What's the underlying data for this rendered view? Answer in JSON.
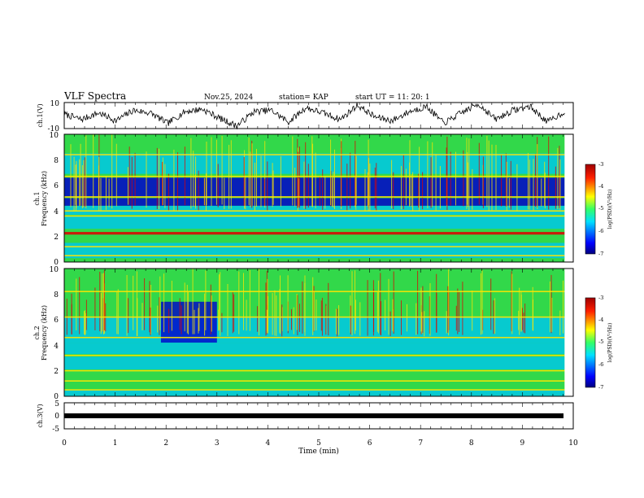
{
  "header": {
    "title": "VLF Spectra",
    "date": "Nov.25, 2024",
    "station": "station= KAP",
    "start": "start  UT =   11: 20: 1"
  },
  "chart_data": [
    {
      "type": "line",
      "panel": "ch1-waveform",
      "ylabel": "ch.1(V)",
      "ylim": [
        -10,
        10
      ],
      "yticks": [
        "10",
        "-10"
      ],
      "xlim": [
        0,
        9.83
      ],
      "series": [
        {
          "values": [
            1,
            -3,
            2,
            -4,
            4,
            2,
            -6,
            3,
            5,
            -2,
            -8,
            3,
            4,
            -5,
            6,
            2,
            -3,
            8,
            -1,
            -4,
            3,
            7,
            -6,
            2,
            9,
            -3,
            4,
            7,
            -5,
            3
          ]
        }
      ]
    },
    {
      "type": "heatmap",
      "panel": "ch1-spectrogram",
      "ylabel_top": "ch.1",
      "ylabel": "Frequency  (kHz)",
      "ylim": [
        0,
        10
      ],
      "yticks": [
        "0",
        "2",
        "4",
        "6",
        "8",
        "10"
      ],
      "xlim": [
        0,
        9.83
      ],
      "colorbar": {
        "label": "log(PSD)(V²/Hz)",
        "range": [
          -7,
          -3
        ],
        "ticks": [
          "-3",
          "-4",
          "-5",
          "-6",
          "-7"
        ]
      }
    },
    {
      "type": "heatmap",
      "panel": "ch2-spectrogram",
      "ylabel_top": "ch.2",
      "ylabel": "Frequency  (kHz)",
      "ylim": [
        0,
        10
      ],
      "yticks": [
        "0",
        "2",
        "4",
        "6",
        "8",
        "10"
      ],
      "xlim": [
        0,
        9.83
      ],
      "colorbar": {
        "label": "log(PSD)(V²/Hz)",
        "range": [
          -7,
          -3
        ],
        "ticks": [
          "-3",
          "-4",
          "-5",
          "-6",
          "-7"
        ]
      }
    },
    {
      "type": "line",
      "panel": "ch3-waveform",
      "ylabel": "ch.3(V)",
      "ylim": [
        -5,
        5
      ],
      "yticks": [
        "5",
        "0",
        "-5"
      ],
      "xlim": [
        0,
        9.83
      ],
      "series": [
        {
          "values": [
            0,
            0
          ]
        }
      ]
    }
  ],
  "xaxis": {
    "label": "Time  (min)",
    "range": [
      0,
      10
    ],
    "ticks": [
      "0",
      "1",
      "2",
      "3",
      "4",
      "5",
      "6",
      "7",
      "8",
      "9",
      "10"
    ]
  },
  "colors": {
    "blue": "#0000cc",
    "cyan": "#00c8e6",
    "green": "#33d84a",
    "yellow": "#ffe600",
    "red": "#e00000",
    "axis": "#000000"
  }
}
